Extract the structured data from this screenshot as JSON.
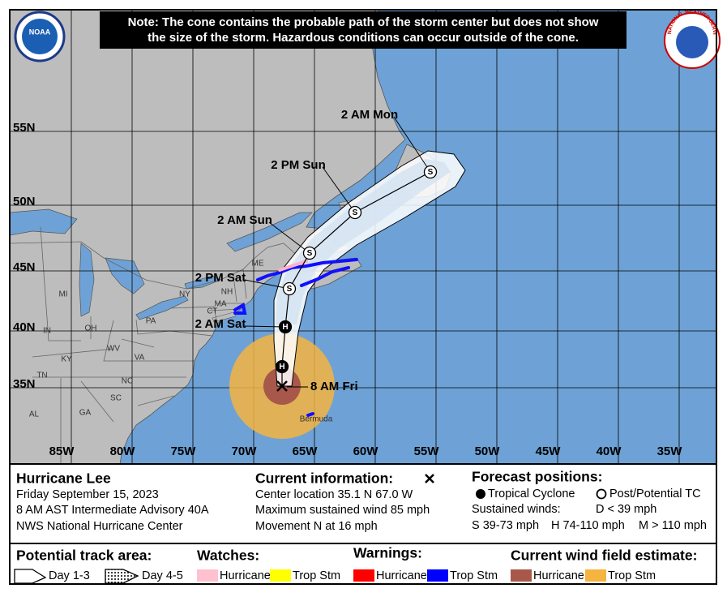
{
  "note": [
    "Note: The cone contains the probable path of the storm center but does not show",
    "the size of the storm. Hazardous conditions can occur outside of the cone."
  ],
  "logos": {
    "noaa": "NOAA",
    "nws": "NATIONAL WEATHER SERVICE"
  },
  "map": {
    "latitude_labels": [
      "55N",
      "50N",
      "45N",
      "40N",
      "35N"
    ],
    "longitude_labels": [
      "85W",
      "80W",
      "75W",
      "70W",
      "65W",
      "60W",
      "55W",
      "50W",
      "45W",
      "40W",
      "35W"
    ],
    "place_labels": [
      "ME",
      "NH",
      "MA",
      "CT",
      "NY",
      "PA",
      "MI",
      "OH",
      "IN",
      "WV",
      "VA",
      "KY",
      "TN",
      "NC",
      "SC",
      "GA",
      "AL",
      "Bermuda"
    ],
    "current_time": "8 AM Fri",
    "forecast_points": [
      {
        "symbol": "H"
      },
      {
        "time": "2 AM Sat",
        "symbol": "H"
      },
      {
        "time": "2 PM Sat",
        "symbol": "S"
      },
      {
        "time": "2 AM Sun",
        "symbol": "S"
      },
      {
        "time": "2 PM Sun",
        "symbol": "S"
      },
      {
        "time": "2 AM Mon",
        "symbol": "S"
      }
    ]
  },
  "info": {
    "storm": {
      "name": "Hurricane Lee",
      "date": "Friday September 15, 2023",
      "advisory": "8 AM AST Intermediate Advisory 40A",
      "center": "NWS National Hurricane Center"
    },
    "current": {
      "title": "Current information:",
      "location": "Center location 35.1 N 67.0 W",
      "wind": "Maximum sustained wind 85 mph",
      "movement": "Movement N at 16 mph"
    },
    "forecast": {
      "title": "Forecast positions:",
      "tropical": "Tropical Cyclone",
      "post": "Post/Potential TC",
      "sustained": "Sustained winds:",
      "d": "D < 39 mph",
      "s": "S 39-73 mph",
      "h": "H 74-110 mph",
      "m": "M > 110 mph"
    }
  },
  "legend": {
    "track": {
      "title": "Potential track area:",
      "day13": "Day 1-3",
      "day45": "Day 4-5"
    },
    "watches": {
      "title": "Watches:",
      "hurricane": "Hurricane",
      "storm": "Trop Stm"
    },
    "warnings": {
      "title": "Warnings:",
      "hurricane": "Hurricane",
      "storm": "Trop Stm"
    },
    "wind": {
      "title": "Current wind field estimate:",
      "hurricane": "Hurricane",
      "storm": "Trop Stm"
    }
  }
}
